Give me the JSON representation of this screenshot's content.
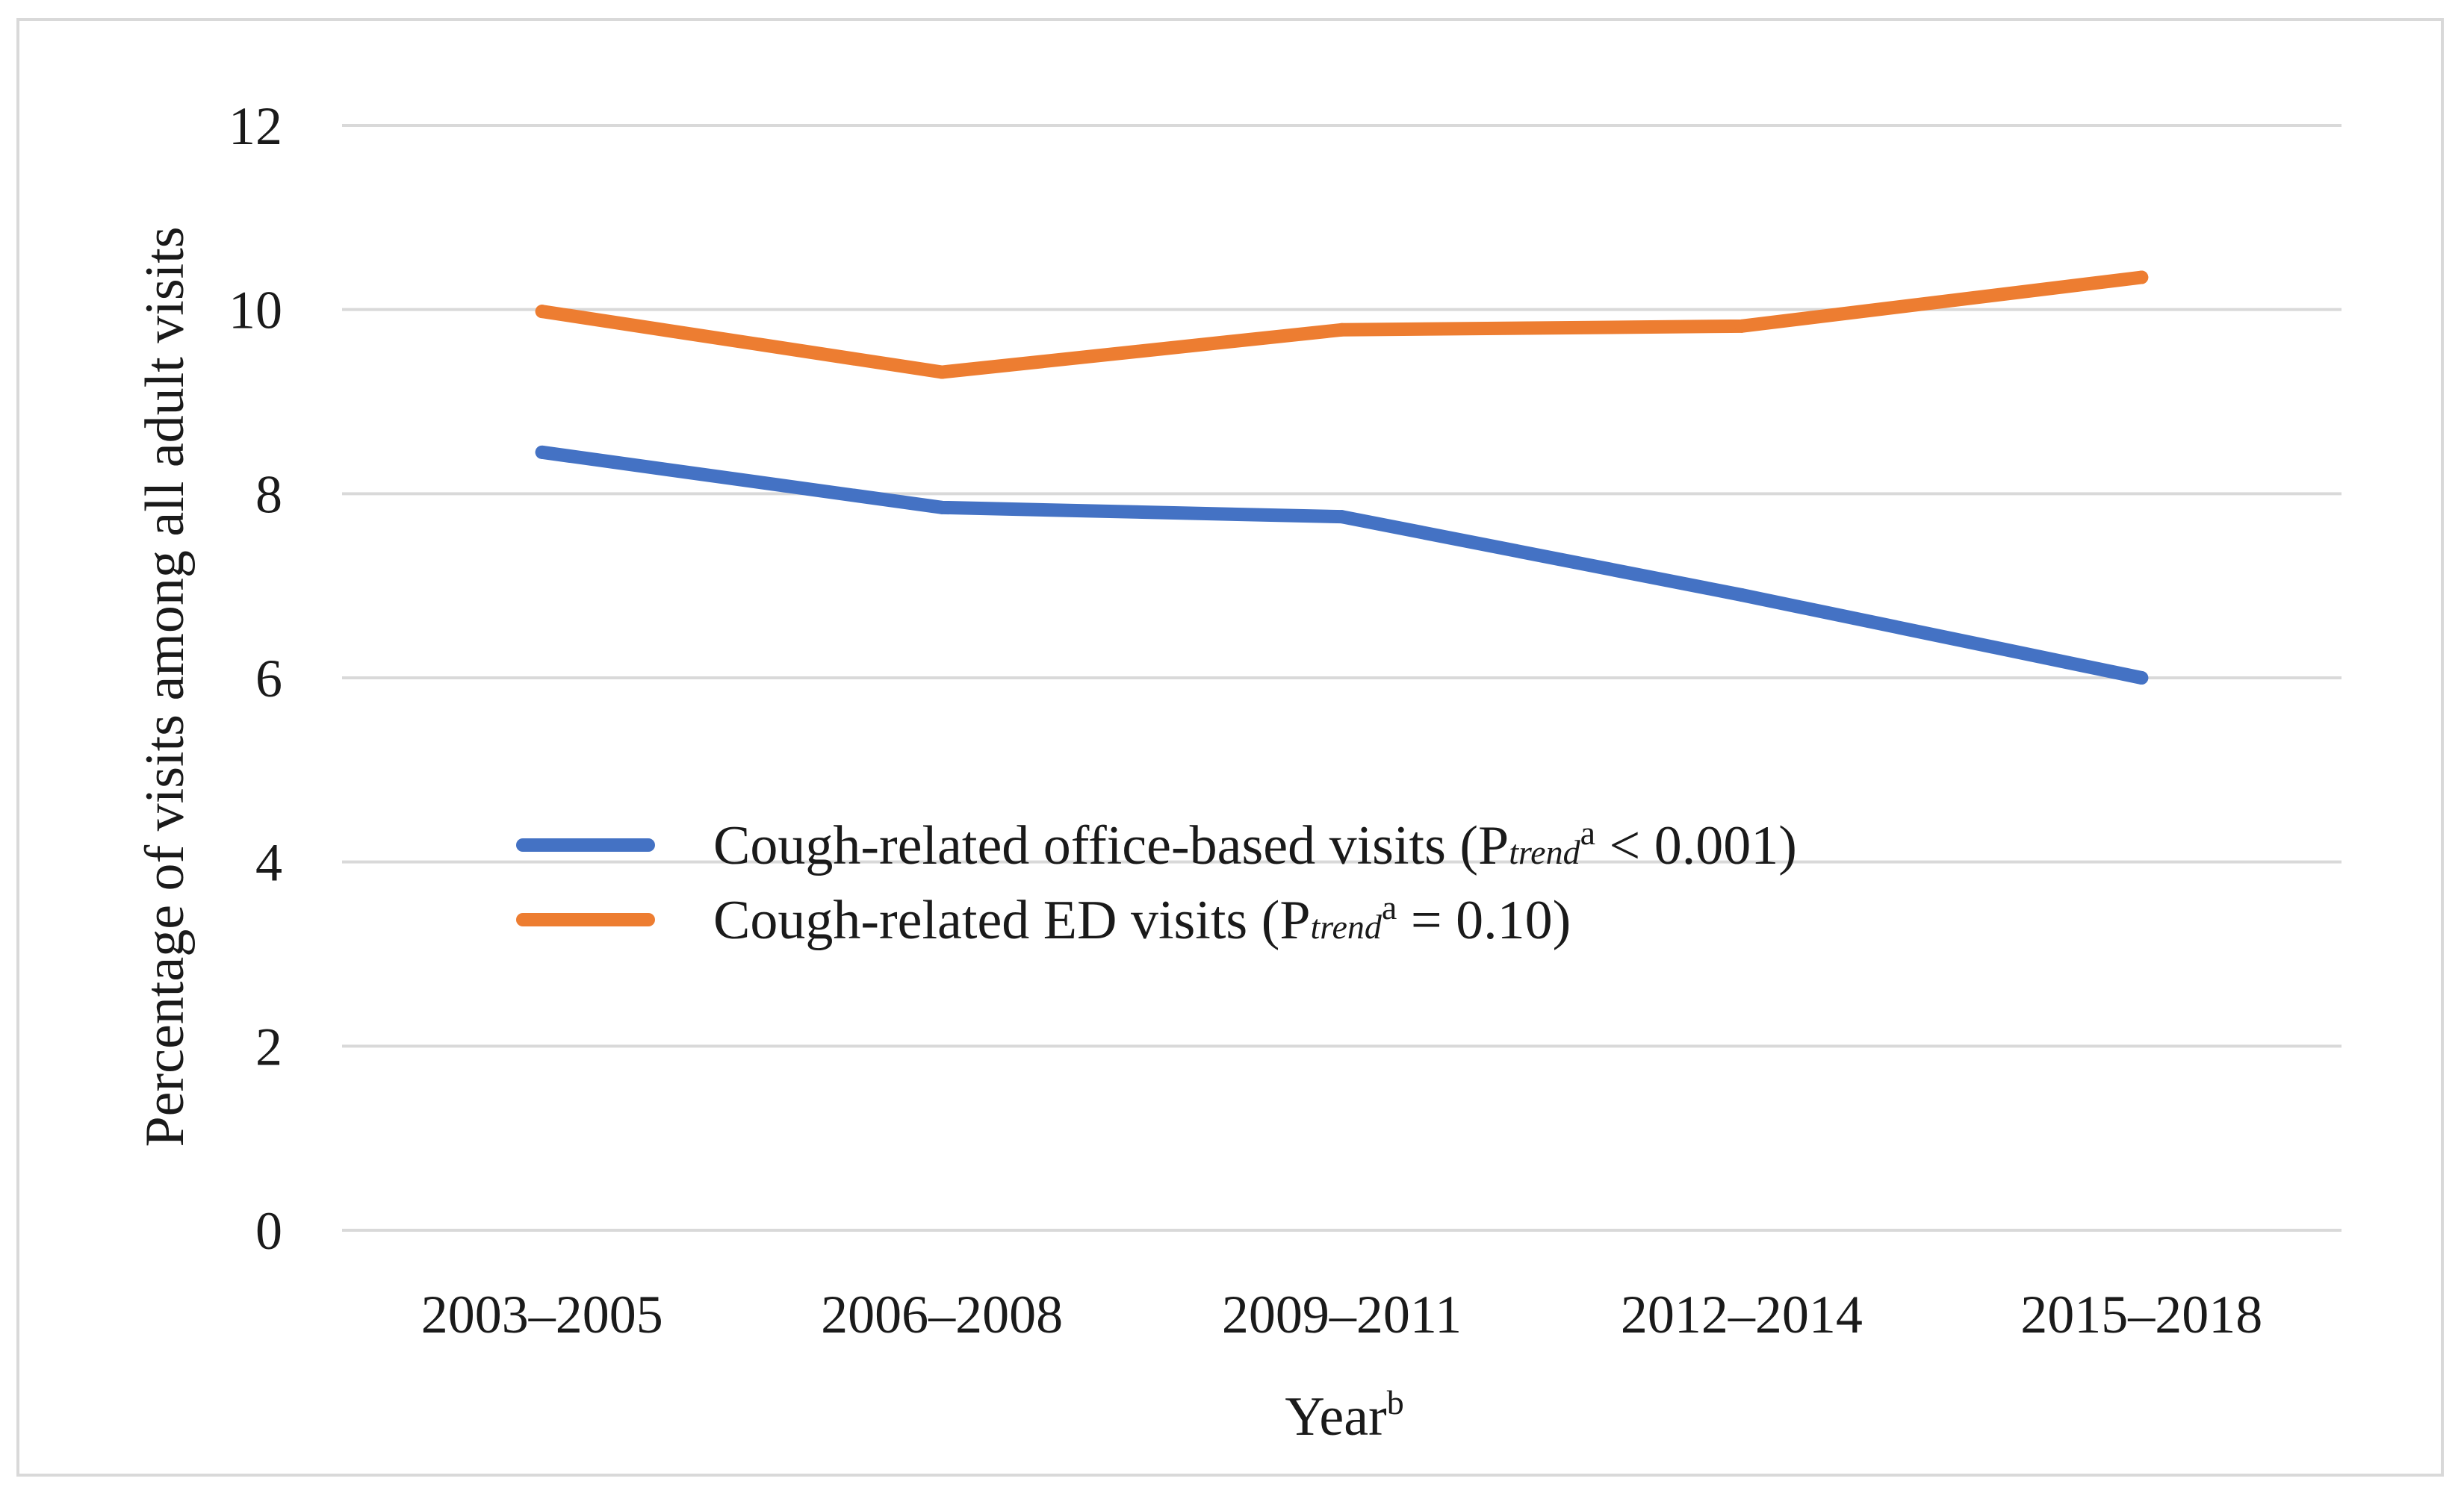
{
  "chart_data": {
    "type": "line",
    "title": "",
    "xlabel": "Year",
    "xlabel_superscript": "b",
    "ylabel": "Percentage of visits among all adult visits",
    "categories": [
      "2003–2005",
      "2006–2008",
      "2009–2011",
      "2012–2014",
      "2015–2018"
    ],
    "ylim": [
      0,
      12
    ],
    "yticks": [
      0,
      2,
      4,
      6,
      8,
      10,
      12
    ],
    "ytick_labels": [
      "0",
      "2",
      "4",
      "6",
      "8",
      "10",
      "12"
    ],
    "grid": true,
    "legend_position": "center-left",
    "series": [
      {
        "name": "Cough-related office-based visits",
        "legend_prefix": "Cough-related office-based visits (P",
        "legend_subscript": "trend",
        "legend_superscript": "a",
        "legend_suffix": " < 0.001)",
        "color": "#4472c4",
        "values": [
          8.45,
          7.85,
          7.75,
          6.9,
          6.0
        ]
      },
      {
        "name": "Cough-related ED visits",
        "legend_prefix": "Cough-related ED visits (P",
        "legend_subscript": "trend",
        "legend_superscript": "a",
        "legend_suffix": " = 0.10)",
        "color": "#ed7d31",
        "values": [
          9.98,
          9.32,
          9.78,
          9.82,
          10.35
        ]
      }
    ]
  }
}
